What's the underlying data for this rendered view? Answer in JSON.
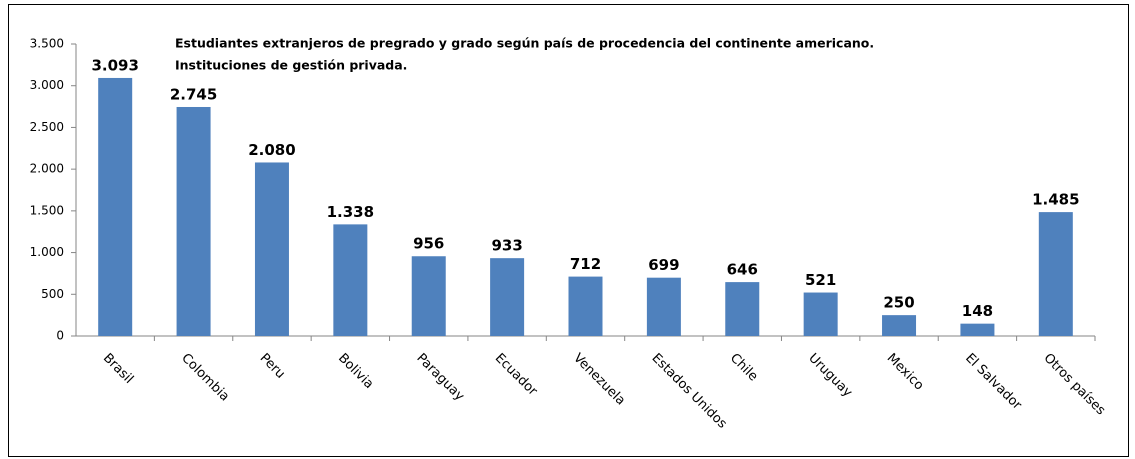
{
  "chart_data": {
    "type": "bar",
    "title": "Estudiantes extranjeros de pregrado y grado según país de procedencia del continente americano.",
    "subtitle": "Instituciones de gestión privada.",
    "categories": [
      "Brasil",
      "Colombia",
      "Peru",
      "Bolivia",
      "Paraguay",
      "Ecuador",
      "Venezuela",
      "Estados Unidos",
      "Chile",
      "Uruguay",
      "Mexico",
      "El Salvador",
      "Otros países"
    ],
    "values": [
      3093,
      2745,
      2080,
      1338,
      956,
      933,
      712,
      699,
      646,
      521,
      250,
      148,
      1485
    ],
    "value_labels": [
      "3.093",
      "2.745",
      "2.080",
      "1.338",
      "956",
      "933",
      "712",
      "699",
      "646",
      "521",
      "250",
      "148",
      "1.485"
    ],
    "color": "#4f81bd",
    "ylim": [
      0,
      3500
    ],
    "yticks": [
      0,
      500,
      {
        "value": 1000,
        "label": "1.000"
      },
      {
        "value": 1500,
        "label": "1.500"
      },
      {
        "value": 2000,
        "label": "2.000"
      },
      {
        "value": 2500,
        "label": "2.500"
      },
      {
        "value": 3000,
        "label": "3.000"
      },
      {
        "value": 3500,
        "label": "3.500"
      }
    ],
    "grid": false
  }
}
